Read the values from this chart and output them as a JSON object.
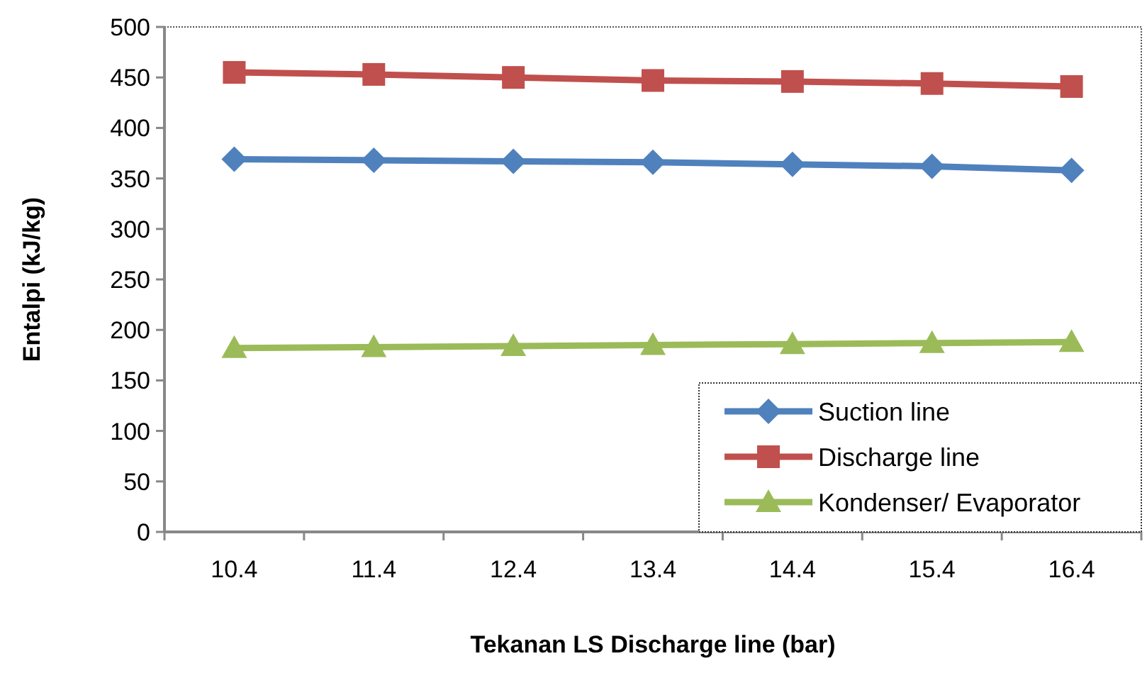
{
  "chart_data": {
    "type": "line",
    "xlabel": "Tekanan LS Discharge line (bar)",
    "ylabel": "Entalpi (kJ/kg)",
    "categories": [
      "10.4",
      "11.4",
      "12.4",
      "13.4",
      "14.4",
      "15.4",
      "16.4"
    ],
    "ylim": [
      0,
      500
    ],
    "yticks": [
      0,
      50,
      100,
      150,
      200,
      250,
      300,
      350,
      400,
      450,
      500
    ],
    "grid": false,
    "legend": "bottom right",
    "series": [
      {
        "name": "Suction line",
        "color": "#4f81bd",
        "marker": "diamond",
        "values": [
          369,
          368,
          367,
          366,
          364,
          362,
          358
        ]
      },
      {
        "name": "Discharge line",
        "color": "#c0504d",
        "marker": "square",
        "values": [
          455,
          453,
          450,
          447,
          446,
          444,
          441
        ]
      },
      {
        "name": "Kondenser/ Evaporator",
        "color": "#9bbb59",
        "marker": "triangle",
        "values": [
          182,
          183,
          184,
          185,
          186,
          187,
          188
        ]
      }
    ]
  }
}
